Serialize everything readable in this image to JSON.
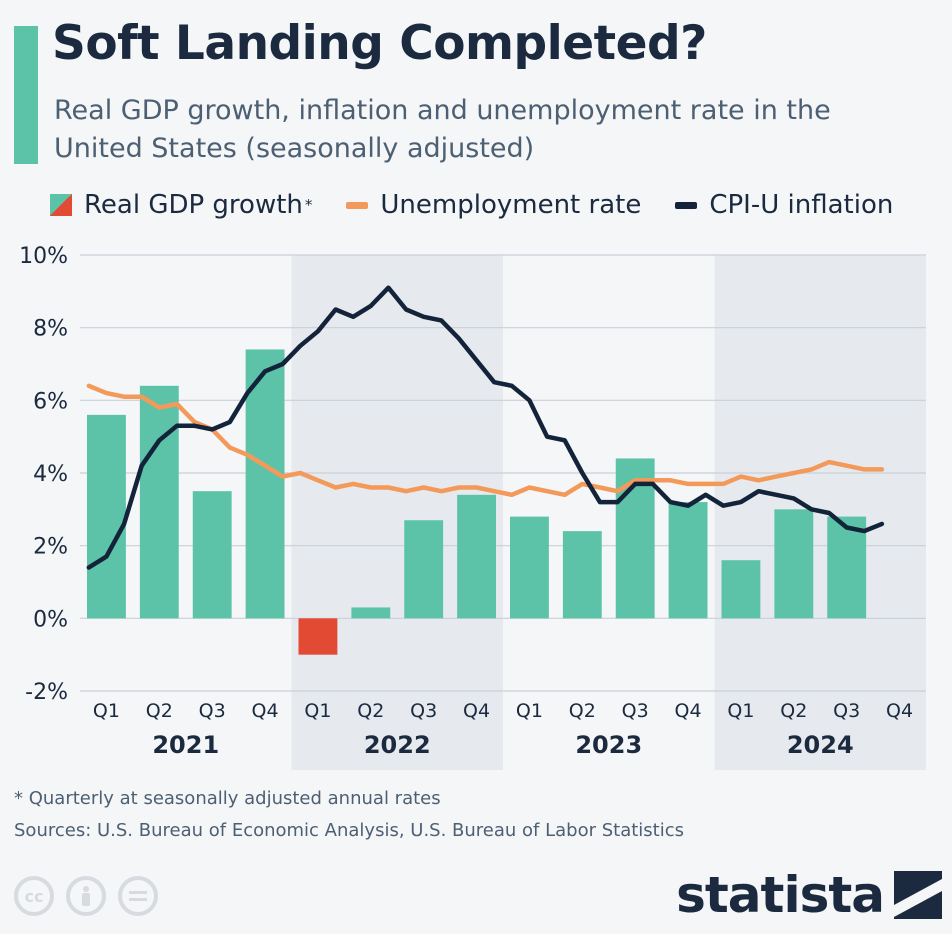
{
  "header": {
    "title": "Soft Landing Completed?",
    "subtitle": "Real GDP growth, inflation and unemployment rate in the United States (seasonally adjusted)"
  },
  "legend": {
    "gdp_label": "Real GDP growth",
    "gdp_mark": "*",
    "unemployment_label": "Unemployment rate",
    "inflation_label": "CPI-U inflation"
  },
  "colors": {
    "gdp_positive": "#5cc3a9",
    "gdp_negative": "#e24a33",
    "unemployment": "#f39a5b",
    "inflation": "#13233a",
    "accent": "#5cc3a9",
    "band": "#e6eaef"
  },
  "footer": {
    "footnote": "* Quarterly at seasonally adjusted annual rates",
    "sources": "Sources: U.S. Bureau of Economic Analysis, U.S. Bureau of Labor Statistics",
    "brand": "statista",
    "license_icons": [
      "cc-icon",
      "person-icon",
      "equals-icon"
    ]
  },
  "chart_data": {
    "type": "bar",
    "title": "Soft Landing Completed?",
    "subtitle": "Real GDP growth, inflation and unemployment rate in the United States (seasonally adjusted)",
    "years": [
      "2021",
      "2022",
      "2023",
      "2024"
    ],
    "quarters": [
      "Q1",
      "Q2",
      "Q3",
      "Q4"
    ],
    "shaded_years": [
      "2022",
      "2024"
    ],
    "ylim": [
      -2,
      10
    ],
    "yticks": [
      -2,
      0,
      2,
      4,
      6,
      8,
      10
    ],
    "ytick_labels": [
      "-2%",
      "0%",
      "2%",
      "4%",
      "6%",
      "8%",
      "10%"
    ],
    "grid": true,
    "series": [
      {
        "name": "Real GDP growth",
        "type": "bar",
        "values": [
          5.6,
          6.4,
          3.5,
          7.4,
          -1.0,
          0.3,
          2.7,
          3.4,
          2.8,
          2.4,
          4.4,
          3.2,
          1.6,
          3.0,
          2.8,
          null
        ]
      },
      {
        "name": "Unemployment rate",
        "type": "line",
        "values": [
          6.4,
          6.2,
          6.1,
          6.1,
          5.8,
          5.9,
          5.4,
          5.2,
          4.7,
          4.5,
          4.2,
          3.9,
          4.0,
          3.8,
          3.6,
          3.7,
          3.6,
          3.6,
          3.5,
          3.6,
          3.5,
          3.6,
          3.6,
          3.5,
          3.4,
          3.6,
          3.5,
          3.4,
          3.7,
          3.6,
          3.5,
          3.8,
          3.8,
          3.8,
          3.7,
          3.7,
          3.7,
          3.9,
          3.8,
          3.9,
          4.0,
          4.1,
          4.3,
          4.2,
          4.1,
          4.1
        ]
      },
      {
        "name": "CPI-U inflation",
        "type": "line",
        "values": [
          1.4,
          1.7,
          2.6,
          4.2,
          4.9,
          5.3,
          5.3,
          5.2,
          5.4,
          6.2,
          6.8,
          7.0,
          7.5,
          7.9,
          8.5,
          8.3,
          8.6,
          9.1,
          8.5,
          8.3,
          8.2,
          7.7,
          7.1,
          6.5,
          6.4,
          6.0,
          5.0,
          4.9,
          4.0,
          3.2,
          3.2,
          3.7,
          3.7,
          3.2,
          3.1,
          3.4,
          3.1,
          3.2,
          3.5,
          3.4,
          3.3,
          3.0,
          2.9,
          2.5,
          2.4,
          2.6
        ]
      }
    ]
  }
}
